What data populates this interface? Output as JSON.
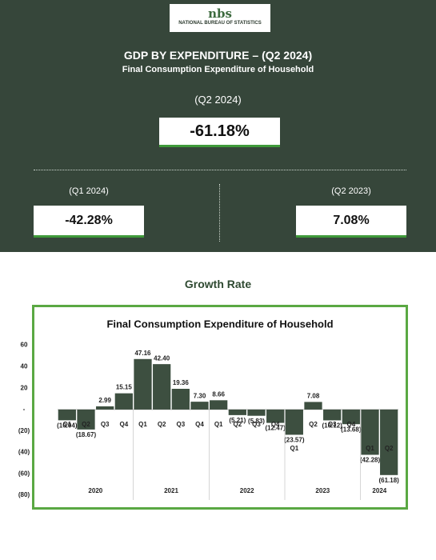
{
  "header": {
    "logo_mark": "nbs",
    "logo_org": "NATIONAL BUREAU OF STATISTICS",
    "title": "GDP BY EXPENDITURE – (Q2 2024)",
    "subtitle": "Final Consumption Expenditure of Household",
    "main": {
      "label": "(Q2 2024)",
      "value": "-61.18%"
    },
    "left": {
      "label": "(Q1 2024)",
      "value": "-42.28%"
    },
    "right": {
      "label": "(Q2 2023)",
      "value": "7.08%"
    }
  },
  "section_title": "Growth Rate",
  "chart_data": {
    "type": "bar",
    "title": "Final Consumption Expenditure of Household",
    "color": "#3d4f40",
    "groups": [
      {
        "name": "2020",
        "categories": [
          "Q1",
          "Q2",
          "Q3",
          "Q4"
        ],
        "values": [
          -10.04,
          -18.67,
          2.99,
          15.15
        ],
        "value_labels": [
          "(10.04)",
          "(18.67)",
          "2.99",
          "15.15"
        ]
      },
      {
        "name": "2021",
        "categories": [
          "Q1",
          "Q2",
          "Q3",
          "Q4"
        ],
        "values": [
          47.16,
          42.4,
          19.36,
          7.3
        ],
        "value_labels": [
          "47.16",
          "42.40",
          "19.36",
          "7.30"
        ]
      },
      {
        "name": "2022",
        "categories": [
          "Q1",
          "Q2",
          "Q3",
          "Q4"
        ],
        "values": [
          8.66,
          -5.21,
          -5.83,
          -12.47
        ],
        "value_labels": [
          "8.66",
          "(5.21)",
          "(5.83)",
          "(12.47)"
        ]
      },
      {
        "name": "2023",
        "categories": [
          "Q1",
          "Q2",
          "Q3",
          "Q4"
        ],
        "values": [
          -23.57,
          7.08,
          -10.12,
          -13.68
        ],
        "value_labels": [
          "(23.57)",
          "7.08",
          "(10.12)",
          "(13.68)"
        ]
      },
      {
        "name": "2024",
        "categories": [
          "Q1",
          "Q2"
        ],
        "values": [
          -42.28,
          -61.18
        ],
        "value_labels": [
          "(42.28)",
          "(61.18)"
        ]
      }
    ],
    "ylim": [
      -80,
      60
    ],
    "yticks": [
      60,
      40,
      20,
      {
        "value": 0,
        "label": "-"
      },
      {
        "value": -20,
        "label": "(20)"
      },
      {
        "value": -40,
        "label": "(40)"
      },
      {
        "value": -60,
        "label": "(60)"
      },
      {
        "value": -80,
        "label": "(80)"
      }
    ]
  }
}
